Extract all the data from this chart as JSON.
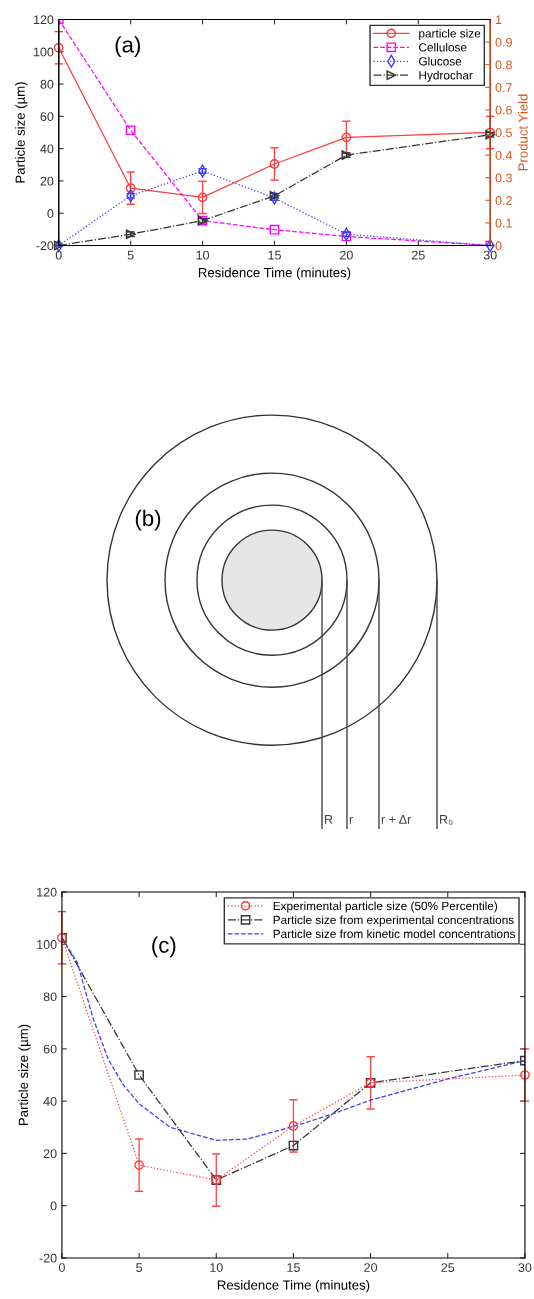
{
  "chart_data": [
    {
      "type": "line",
      "xlabel": "Residence Time (minutes)",
      "ylabel": "Particle size (µm)",
      "y2label": "Product Yield",
      "annotations": [
        "(a)"
      ],
      "xlim": [
        0,
        30
      ],
      "xticks": [
        0,
        5,
        10,
        15,
        20,
        25,
        30
      ],
      "ylim": [
        -20,
        120
      ],
      "yticks": [
        -20,
        0,
        20,
        40,
        60,
        80,
        100,
        120
      ],
      "y2lim": [
        0,
        1
      ],
      "y2ticks": [
        0,
        0.1,
        0.2,
        0.3,
        0.4,
        0.5,
        0.6,
        0.7,
        0.8,
        0.9,
        1
      ],
      "legend": "top right",
      "series": [
        {
          "name": "particle size",
          "color": "#ff3c3c",
          "marker": "circle",
          "line_style": "solid",
          "x": [
            0,
            5,
            10,
            15,
            20,
            30
          ],
          "values": [
            102.5,
            15.5,
            9.8,
            30.5,
            47,
            50
          ],
          "errors": [
            10,
            10,
            10,
            10,
            10,
            10
          ]
        },
        {
          "name": "Cellulose",
          "color": "#ff00ff",
          "marker": "square",
          "line_style": "dashed",
          "axis": "y2",
          "x": [
            0,
            5,
            10,
            15,
            20,
            30
          ],
          "values": [
            1.0,
            0.51,
            0.11,
            0.07,
            0.04,
            0.0
          ]
        },
        {
          "name": "Glucose",
          "color": "#3c3cff",
          "marker": "diamond",
          "line_style": "dotted",
          "axis": "y2",
          "x": [
            0,
            5,
            10,
            15,
            20,
            30
          ],
          "values": [
            0.0,
            0.22,
            0.33,
            0.21,
            0.05,
            0.0
          ],
          "errors": [
            null,
            0.01,
            0.01,
            0.01,
            0.01,
            null
          ]
        },
        {
          "name": "Hydrochar",
          "color": "#333333",
          "marker": "triangle",
          "line_style": "dashdot",
          "axis": "y2",
          "x": [
            0,
            5,
            10,
            15,
            20,
            30
          ],
          "values": [
            0.0,
            0.05,
            0.11,
            0.22,
            0.4,
            0.49
          ],
          "errors": [
            null,
            0.01,
            0.01,
            0.01,
            0.01,
            0.01
          ]
        }
      ]
    },
    {
      "type": "other",
      "annotations": [
        "(b)",
        "R",
        "r",
        "r + Δr",
        "R₀"
      ]
    },
    {
      "type": "line",
      "xlabel": "Residence Time (minutes)",
      "ylabel": "Particle size (µm)",
      "annotations": [
        "(c)"
      ],
      "xlim": [
        0,
        30
      ],
      "xticks": [
        0,
        5,
        10,
        15,
        20,
        25,
        30
      ],
      "ylim": [
        -20,
        120
      ],
      "yticks": [
        -20,
        0,
        20,
        40,
        60,
        80,
        100,
        120
      ],
      "legend": "top right",
      "series": [
        {
          "name": "Experimental particle size (50% Percentile)",
          "color": "#ff3c3c",
          "marker": "circle",
          "line_style": "dotted",
          "x": [
            0,
            5,
            10,
            15,
            20,
            30
          ],
          "values": [
            102.5,
            15.5,
            9.8,
            30.5,
            47,
            50
          ],
          "errors": [
            10,
            10,
            10,
            10,
            10,
            10
          ]
        },
        {
          "name": "Particle size from experimental concentrations",
          "color": "#333333",
          "marker": "square",
          "line_style": "dashdot",
          "x": [
            0,
            5,
            10,
            15,
            20,
            30
          ],
          "values": [
            102.5,
            50,
            9.8,
            23,
            47,
            55.5
          ]
        },
        {
          "name": "Particle size from kinetic model concentrations",
          "color": "#3c3cff",
          "marker": "none",
          "line_style": "dashed",
          "x": [
            0,
            1,
            2,
            3,
            4,
            5,
            7,
            10,
            12,
            15,
            17.5,
            20,
            25,
            30
          ],
          "values": [
            102.5,
            93,
            72,
            56,
            46,
            39,
            30,
            25,
            25.5,
            30.3,
            35,
            40.4,
            48.5,
            55.5
          ]
        }
      ]
    }
  ]
}
